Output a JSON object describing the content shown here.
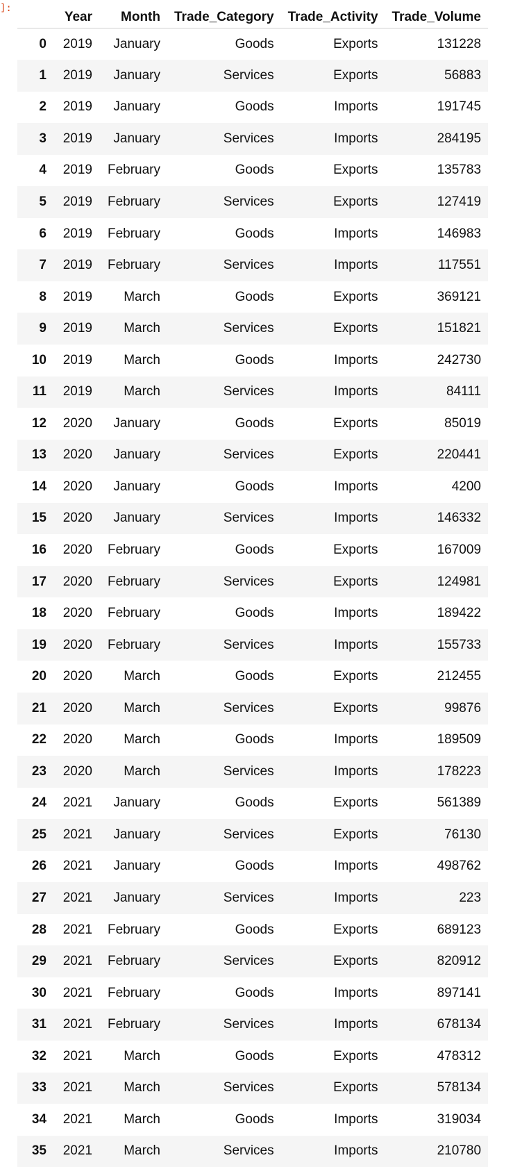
{
  "prompt_text": "]:",
  "table": {
    "columns": [
      "",
      "Year",
      "Month",
      "Trade_Category",
      "Trade_Activity",
      "Trade_Volume"
    ],
    "rows": [
      [
        "0",
        "2019",
        "January",
        "Goods",
        "Exports",
        "131228"
      ],
      [
        "1",
        "2019",
        "January",
        "Services",
        "Exports",
        "56883"
      ],
      [
        "2",
        "2019",
        "January",
        "Goods",
        "Imports",
        "191745"
      ],
      [
        "3",
        "2019",
        "January",
        "Services",
        "Imports",
        "284195"
      ],
      [
        "4",
        "2019",
        "February",
        "Goods",
        "Exports",
        "135783"
      ],
      [
        "5",
        "2019",
        "February",
        "Services",
        "Exports",
        "127419"
      ],
      [
        "6",
        "2019",
        "February",
        "Goods",
        "Imports",
        "146983"
      ],
      [
        "7",
        "2019",
        "February",
        "Services",
        "Imports",
        "117551"
      ],
      [
        "8",
        "2019",
        "March",
        "Goods",
        "Exports",
        "369121"
      ],
      [
        "9",
        "2019",
        "March",
        "Services",
        "Exports",
        "151821"
      ],
      [
        "10",
        "2019",
        "March",
        "Goods",
        "Imports",
        "242730"
      ],
      [
        "11",
        "2019",
        "March",
        "Services",
        "Imports",
        "84111"
      ],
      [
        "12",
        "2020",
        "January",
        "Goods",
        "Exports",
        "85019"
      ],
      [
        "13",
        "2020",
        "January",
        "Services",
        "Exports",
        "220441"
      ],
      [
        "14",
        "2020",
        "January",
        "Goods",
        "Imports",
        "4200"
      ],
      [
        "15",
        "2020",
        "January",
        "Services",
        "Imports",
        "146332"
      ],
      [
        "16",
        "2020",
        "February",
        "Goods",
        "Exports",
        "167009"
      ],
      [
        "17",
        "2020",
        "February",
        "Services",
        "Exports",
        "124981"
      ],
      [
        "18",
        "2020",
        "February",
        "Goods",
        "Imports",
        "189422"
      ],
      [
        "19",
        "2020",
        "February",
        "Services",
        "Imports",
        "155733"
      ],
      [
        "20",
        "2020",
        "March",
        "Goods",
        "Exports",
        "212455"
      ],
      [
        "21",
        "2020",
        "March",
        "Services",
        "Exports",
        "99876"
      ],
      [
        "22",
        "2020",
        "March",
        "Goods",
        "Imports",
        "189509"
      ],
      [
        "23",
        "2020",
        "March",
        "Services",
        "Imports",
        "178223"
      ],
      [
        "24",
        "2021",
        "January",
        "Goods",
        "Exports",
        "561389"
      ],
      [
        "25",
        "2021",
        "January",
        "Services",
        "Exports",
        "76130"
      ],
      [
        "26",
        "2021",
        "January",
        "Goods",
        "Imports",
        "498762"
      ],
      [
        "27",
        "2021",
        "January",
        "Services",
        "Imports",
        "223"
      ],
      [
        "28",
        "2021",
        "February",
        "Goods",
        "Exports",
        "689123"
      ],
      [
        "29",
        "2021",
        "February",
        "Services",
        "Exports",
        "820912"
      ],
      [
        "30",
        "2021",
        "February",
        "Goods",
        "Imports",
        "897141"
      ],
      [
        "31",
        "2021",
        "February",
        "Services",
        "Imports",
        "678134"
      ],
      [
        "32",
        "2021",
        "March",
        "Goods",
        "Exports",
        "478312"
      ],
      [
        "33",
        "2021",
        "March",
        "Services",
        "Exports",
        "578134"
      ],
      [
        "34",
        "2021",
        "March",
        "Goods",
        "Imports",
        "319034"
      ],
      [
        "35",
        "2021",
        "March",
        "Services",
        "Imports",
        "210780"
      ]
    ]
  },
  "colors": {
    "prompt": "#d84315",
    "row_stripe": "#f5f5f5",
    "header_border": "#cfcfcf"
  }
}
